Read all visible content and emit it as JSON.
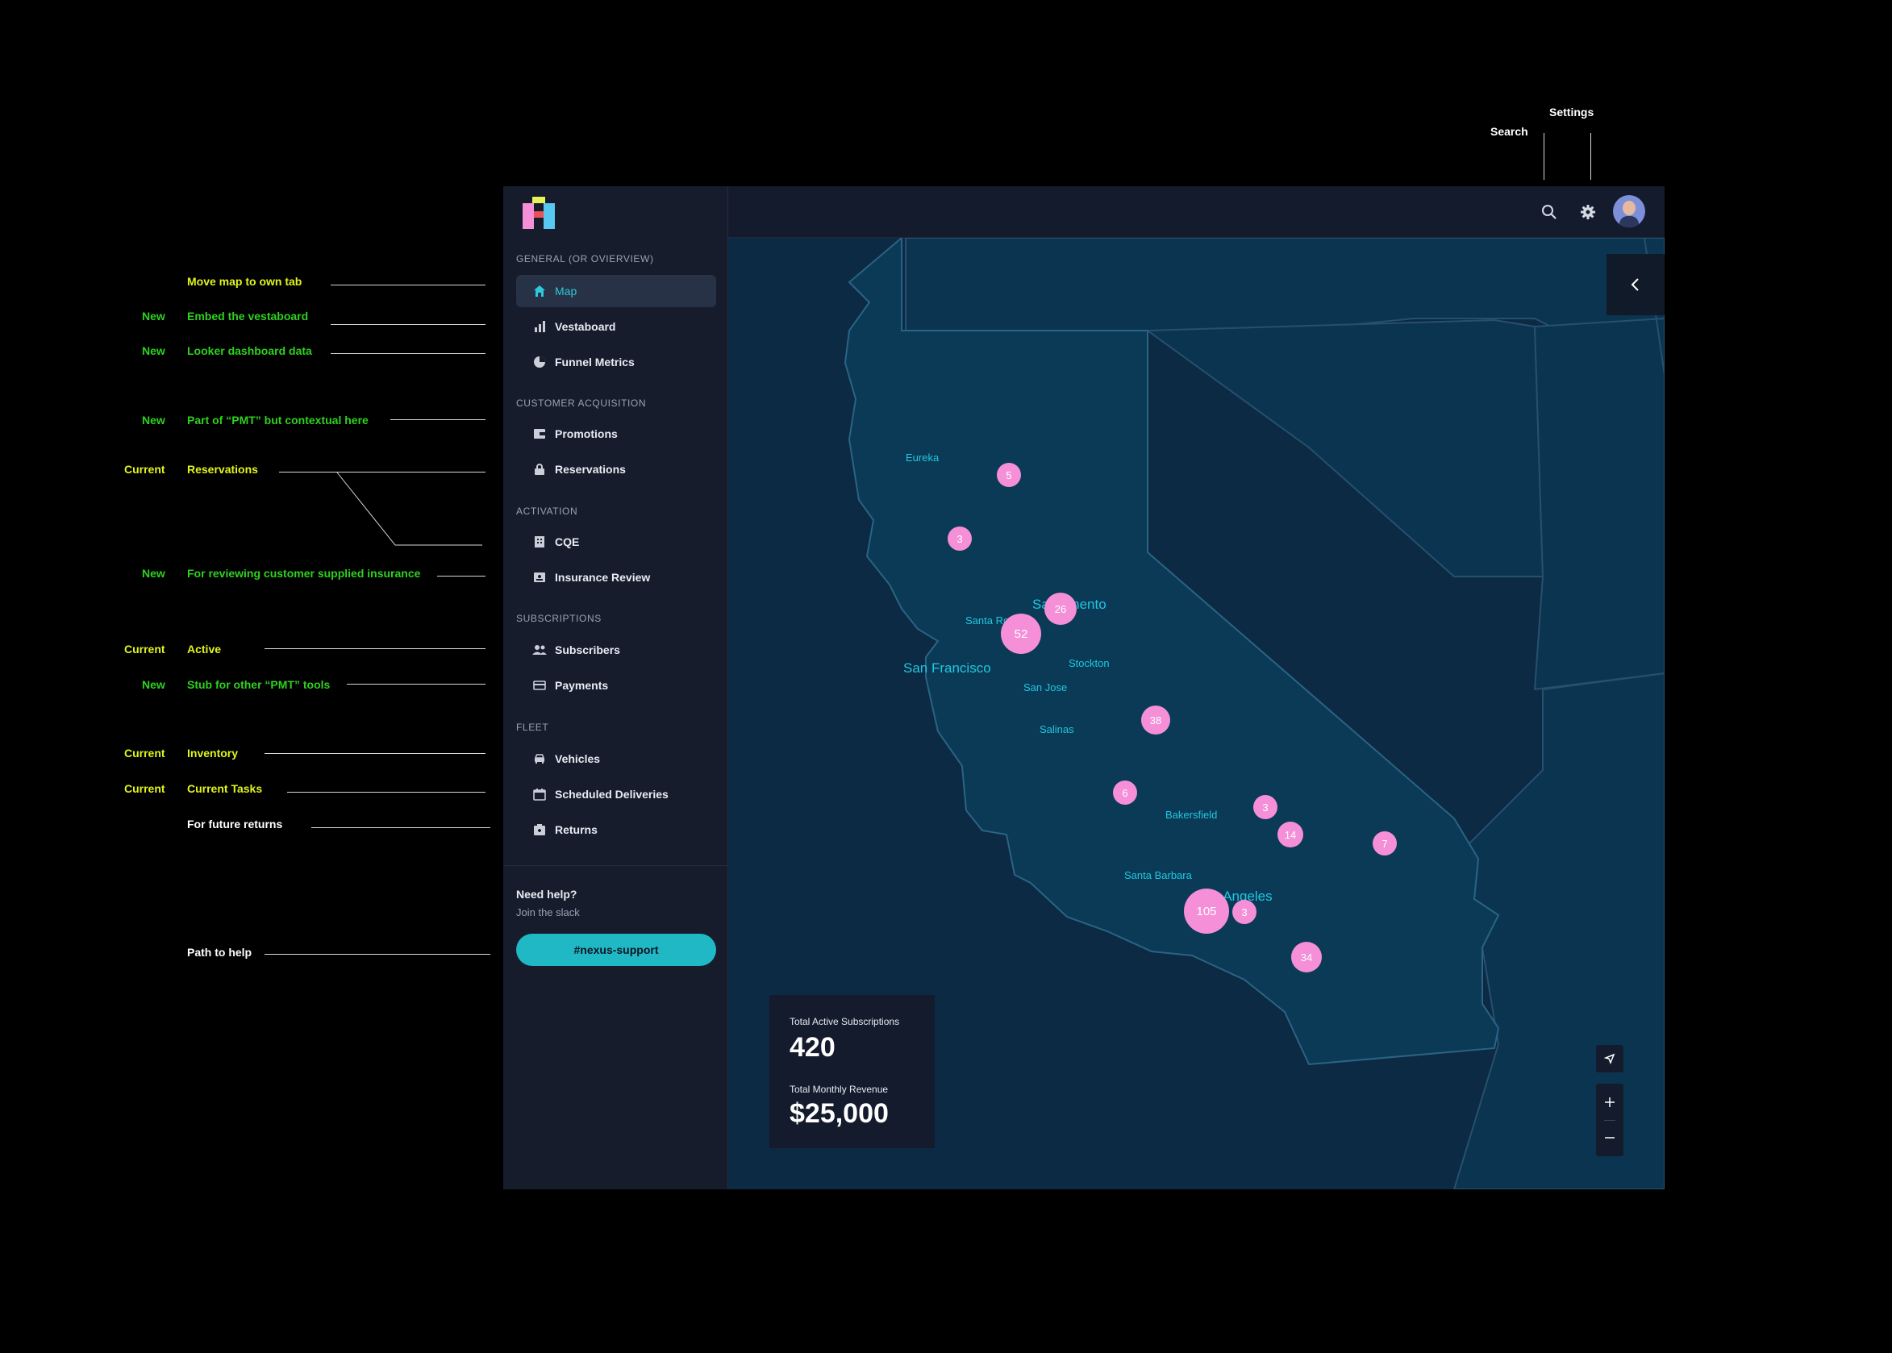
{
  "callouts": {
    "search": "Search",
    "settings": "Settings"
  },
  "annotations": [
    {
      "tag": "",
      "text": "Move map to own tab",
      "color": "#e1f51c"
    },
    {
      "tag": "New",
      "text": "Embed the vestaboard",
      "color": "#2fd11f"
    },
    {
      "tag": "New",
      "text": "Looker dashboard  data",
      "color": "#2fd11f"
    },
    {
      "tag": "New",
      "text": "Part of “PMT” but contextual here",
      "color": "#2fd11f"
    },
    {
      "tag": "Current",
      "text": "Reservations",
      "color": "#e1f51c"
    },
    {
      "tag": "New",
      "text": "For reviewing customer supplied insurance",
      "color": "#2fd11f"
    },
    {
      "tag": "Current",
      "text": "Active",
      "color": "#e1f51c"
    },
    {
      "tag": "New",
      "text": "Stub for other “PMT” tools",
      "color": "#2fd11f"
    },
    {
      "tag": "Current",
      "text": "Inventory",
      "color": "#e1f51c"
    },
    {
      "tag": "Current",
      "text": "Current Tasks",
      "color": "#e1f51c"
    },
    {
      "tag": "",
      "text": "For future returns",
      "color": "#ffffff"
    },
    {
      "tag": "",
      "text": "Path to help",
      "color": "#ffffff"
    }
  ],
  "sidebar": {
    "sections": [
      {
        "title": "GENERAL (OR OVIERVIEW)",
        "items": [
          {
            "label": "Map",
            "icon": "home-icon",
            "active": true
          },
          {
            "label": "Vestaboard",
            "icon": "bar-chart-icon"
          },
          {
            "label": "Funnel Metrics",
            "icon": "pie-chart-icon"
          }
        ]
      },
      {
        "title": "CUSTOMER ACQUISITION",
        "items": [
          {
            "label": "Promotions",
            "icon": "wallet-icon"
          },
          {
            "label": "Reservations",
            "icon": "lock-icon"
          }
        ]
      },
      {
        "title": "ACTIVATION",
        "items": [
          {
            "label": "CQE",
            "icon": "building-icon"
          },
          {
            "label": "Insurance Review",
            "icon": "id-card-icon"
          }
        ]
      },
      {
        "title": "SUBSCRIPTIONS",
        "items": [
          {
            "label": "Subscribers",
            "icon": "people-icon"
          },
          {
            "label": "Payments",
            "icon": "credit-card-icon"
          }
        ]
      },
      {
        "title": "FLEET",
        "items": [
          {
            "label": "Vehicles",
            "icon": "car-icon"
          },
          {
            "label": "Scheduled Deliveries",
            "icon": "calendar-icon"
          },
          {
            "label": "Returns",
            "icon": "return-box-icon"
          }
        ]
      }
    ],
    "help": {
      "title": "Need help?",
      "subtitle": "Join the slack",
      "button": "#nexus-support"
    }
  },
  "map": {
    "cities": [
      {
        "name": "Eureka"
      },
      {
        "name": "Sacramento",
        "size": "big"
      },
      {
        "name": "Santa Rosa"
      },
      {
        "name": "San Francisco",
        "size": "big"
      },
      {
        "name": "Stockton"
      },
      {
        "name": "San Jose"
      },
      {
        "name": "Salinas"
      },
      {
        "name": "Bakersfield"
      },
      {
        "name": "Santa Barbara"
      },
      {
        "name": "Los Angeles",
        "size": "big"
      }
    ],
    "markers": [
      5,
      3,
      26,
      52,
      38,
      6,
      3,
      14,
      7,
      105,
      3,
      34
    ],
    "stats": {
      "subs_label": "Total Active Subscriptions",
      "subs_value": "420",
      "revenue_label": "Total Monthly Revenue",
      "revenue_value": "$25,000"
    }
  },
  "colors": {
    "accent": "#2fc8d8",
    "marker": "#f58fd8",
    "map_fill": "#0a3a55",
    "background": "#0c2a44"
  }
}
